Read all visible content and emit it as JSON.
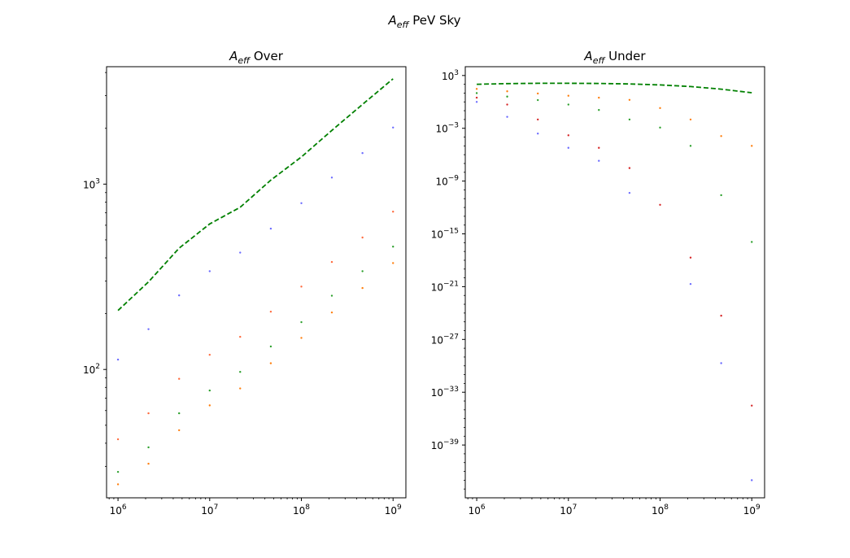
{
  "figure": {
    "suptitle_main": "A",
    "suptitle_sub": "eff",
    "suptitle_rest": " PeV Sky"
  },
  "chart_data": [
    {
      "type": "scatter",
      "title_main": "A",
      "title_sub": "eff",
      "title_rest": " Over",
      "xscale": "log",
      "yscale": "log",
      "xlim": [
        750000,
        1380000000
      ],
      "ylim": [
        20.3,
        4300
      ],
      "grid": false,
      "x": [
        1000000,
        2150000,
        4640000,
        10000000,
        21500000,
        46400000,
        100000000,
        215000000,
        464000000,
        1000000000
      ],
      "xticks": [
        {
          "value": 1000000,
          "base": "10",
          "exp": "6"
        },
        {
          "value": 10000000,
          "base": "10",
          "exp": "7"
        },
        {
          "value": 100000000,
          "base": "10",
          "exp": "8"
        },
        {
          "value": 1000000000,
          "base": "10",
          "exp": "9"
        }
      ],
      "yticks": [
        {
          "value": 100,
          "base": "10",
          "exp": "2"
        },
        {
          "value": 1000,
          "base": "10",
          "exp": "3"
        }
      ],
      "series": [
        {
          "color": "#6b6bff",
          "kind": "points",
          "values": [
            113,
            165,
            251,
            339,
            427,
            575,
            789,
            1085,
            1470,
            2020
          ]
        },
        {
          "color": "#ff6a3d",
          "kind": "points",
          "values": [
            42,
            58,
            89,
            120,
            150,
            205,
            280,
            380,
            515,
            710
          ]
        },
        {
          "color": "#2ca02c",
          "kind": "points",
          "values": [
            28,
            38,
            58,
            77,
            97,
            133,
            180,
            250,
            339,
            460
          ]
        },
        {
          "color": "#ff7f0e",
          "kind": "points",
          "values": [
            24,
            31,
            47,
            64,
            79,
            108,
            148,
            203,
            275,
            375
          ]
        },
        {
          "color": "#008000",
          "kind": "dashed-line",
          "values": [
            208,
            297,
            451,
            610,
            750,
            1050,
            1400,
            1950,
            2690,
            3700
          ]
        }
      ]
    },
    {
      "type": "scatter",
      "title_main": "A",
      "title_sub": "eff",
      "title_rest": " Under",
      "xscale": "log",
      "yscale": "log",
      "xlim": [
        750000,
        1380000000
      ],
      "ylim": [
        1e-45,
        10000.0
      ],
      "grid": false,
      "x": [
        1000000,
        2150000,
        4640000,
        10000000,
        21500000,
        46400000,
        100000000,
        215000000,
        464000000,
        1000000000
      ],
      "xticks": [
        {
          "value": 1000000,
          "base": "10",
          "exp": "6"
        },
        {
          "value": 10000000,
          "base": "10",
          "exp": "7"
        },
        {
          "value": 100000000,
          "base": "10",
          "exp": "8"
        },
        {
          "value": 1000000000,
          "base": "10",
          "exp": "9"
        }
      ],
      "yticks": [
        {
          "value": 1000,
          "base": "10",
          "exp": "3"
        },
        {
          "value": 0.001,
          "base": "10",
          "exp": "−3"
        },
        {
          "value": 1e-09,
          "base": "10",
          "exp": "−9"
        },
        {
          "value": 1e-15,
          "base": "10",
          "exp": "−15"
        },
        {
          "value": 1e-21,
          "base": "10",
          "exp": "−21"
        },
        {
          "value": 1e-27,
          "base": "10",
          "exp": "−27"
        },
        {
          "value": 1e-33,
          "base": "10",
          "exp": "−33"
        },
        {
          "value": 1e-39,
          "base": "10",
          "exp": "−39"
        }
      ],
      "series": [
        {
          "color": "#6b6bff",
          "kind": "points",
          "values": [
            1.0,
            0.02,
            0.00025,
            6e-06,
            2e-07,
            4.5e-11,
            null,
            2e-21,
            2e-30,
            1e-43
          ]
        },
        {
          "color": "#d62728",
          "kind": "points",
          "values": [
            3.0,
            0.5,
            0.01,
            0.00016,
            6e-06,
            3e-08,
            2e-12,
            2e-18,
            5e-25,
            3e-35
          ]
        },
        {
          "color": "#2ca02c",
          "kind": "points",
          "values": [
            10,
            4,
            1.6,
            0.5,
            0.12,
            0.01,
            0.0012,
            1e-05,
            2.5e-11,
            1.2e-16
          ]
        },
        {
          "color": "#ff7f0e",
          "kind": "points",
          "values": [
            30,
            16,
            9,
            5,
            3,
            1.7,
            0.2,
            0.01,
            0.00013,
            1e-05
          ]
        },
        {
          "color": "#008000",
          "kind": "dashed-line",
          "values": [
            100,
            120,
            130,
            130,
            125,
            110,
            85,
            55,
            28,
            11
          ]
        }
      ]
    }
  ]
}
